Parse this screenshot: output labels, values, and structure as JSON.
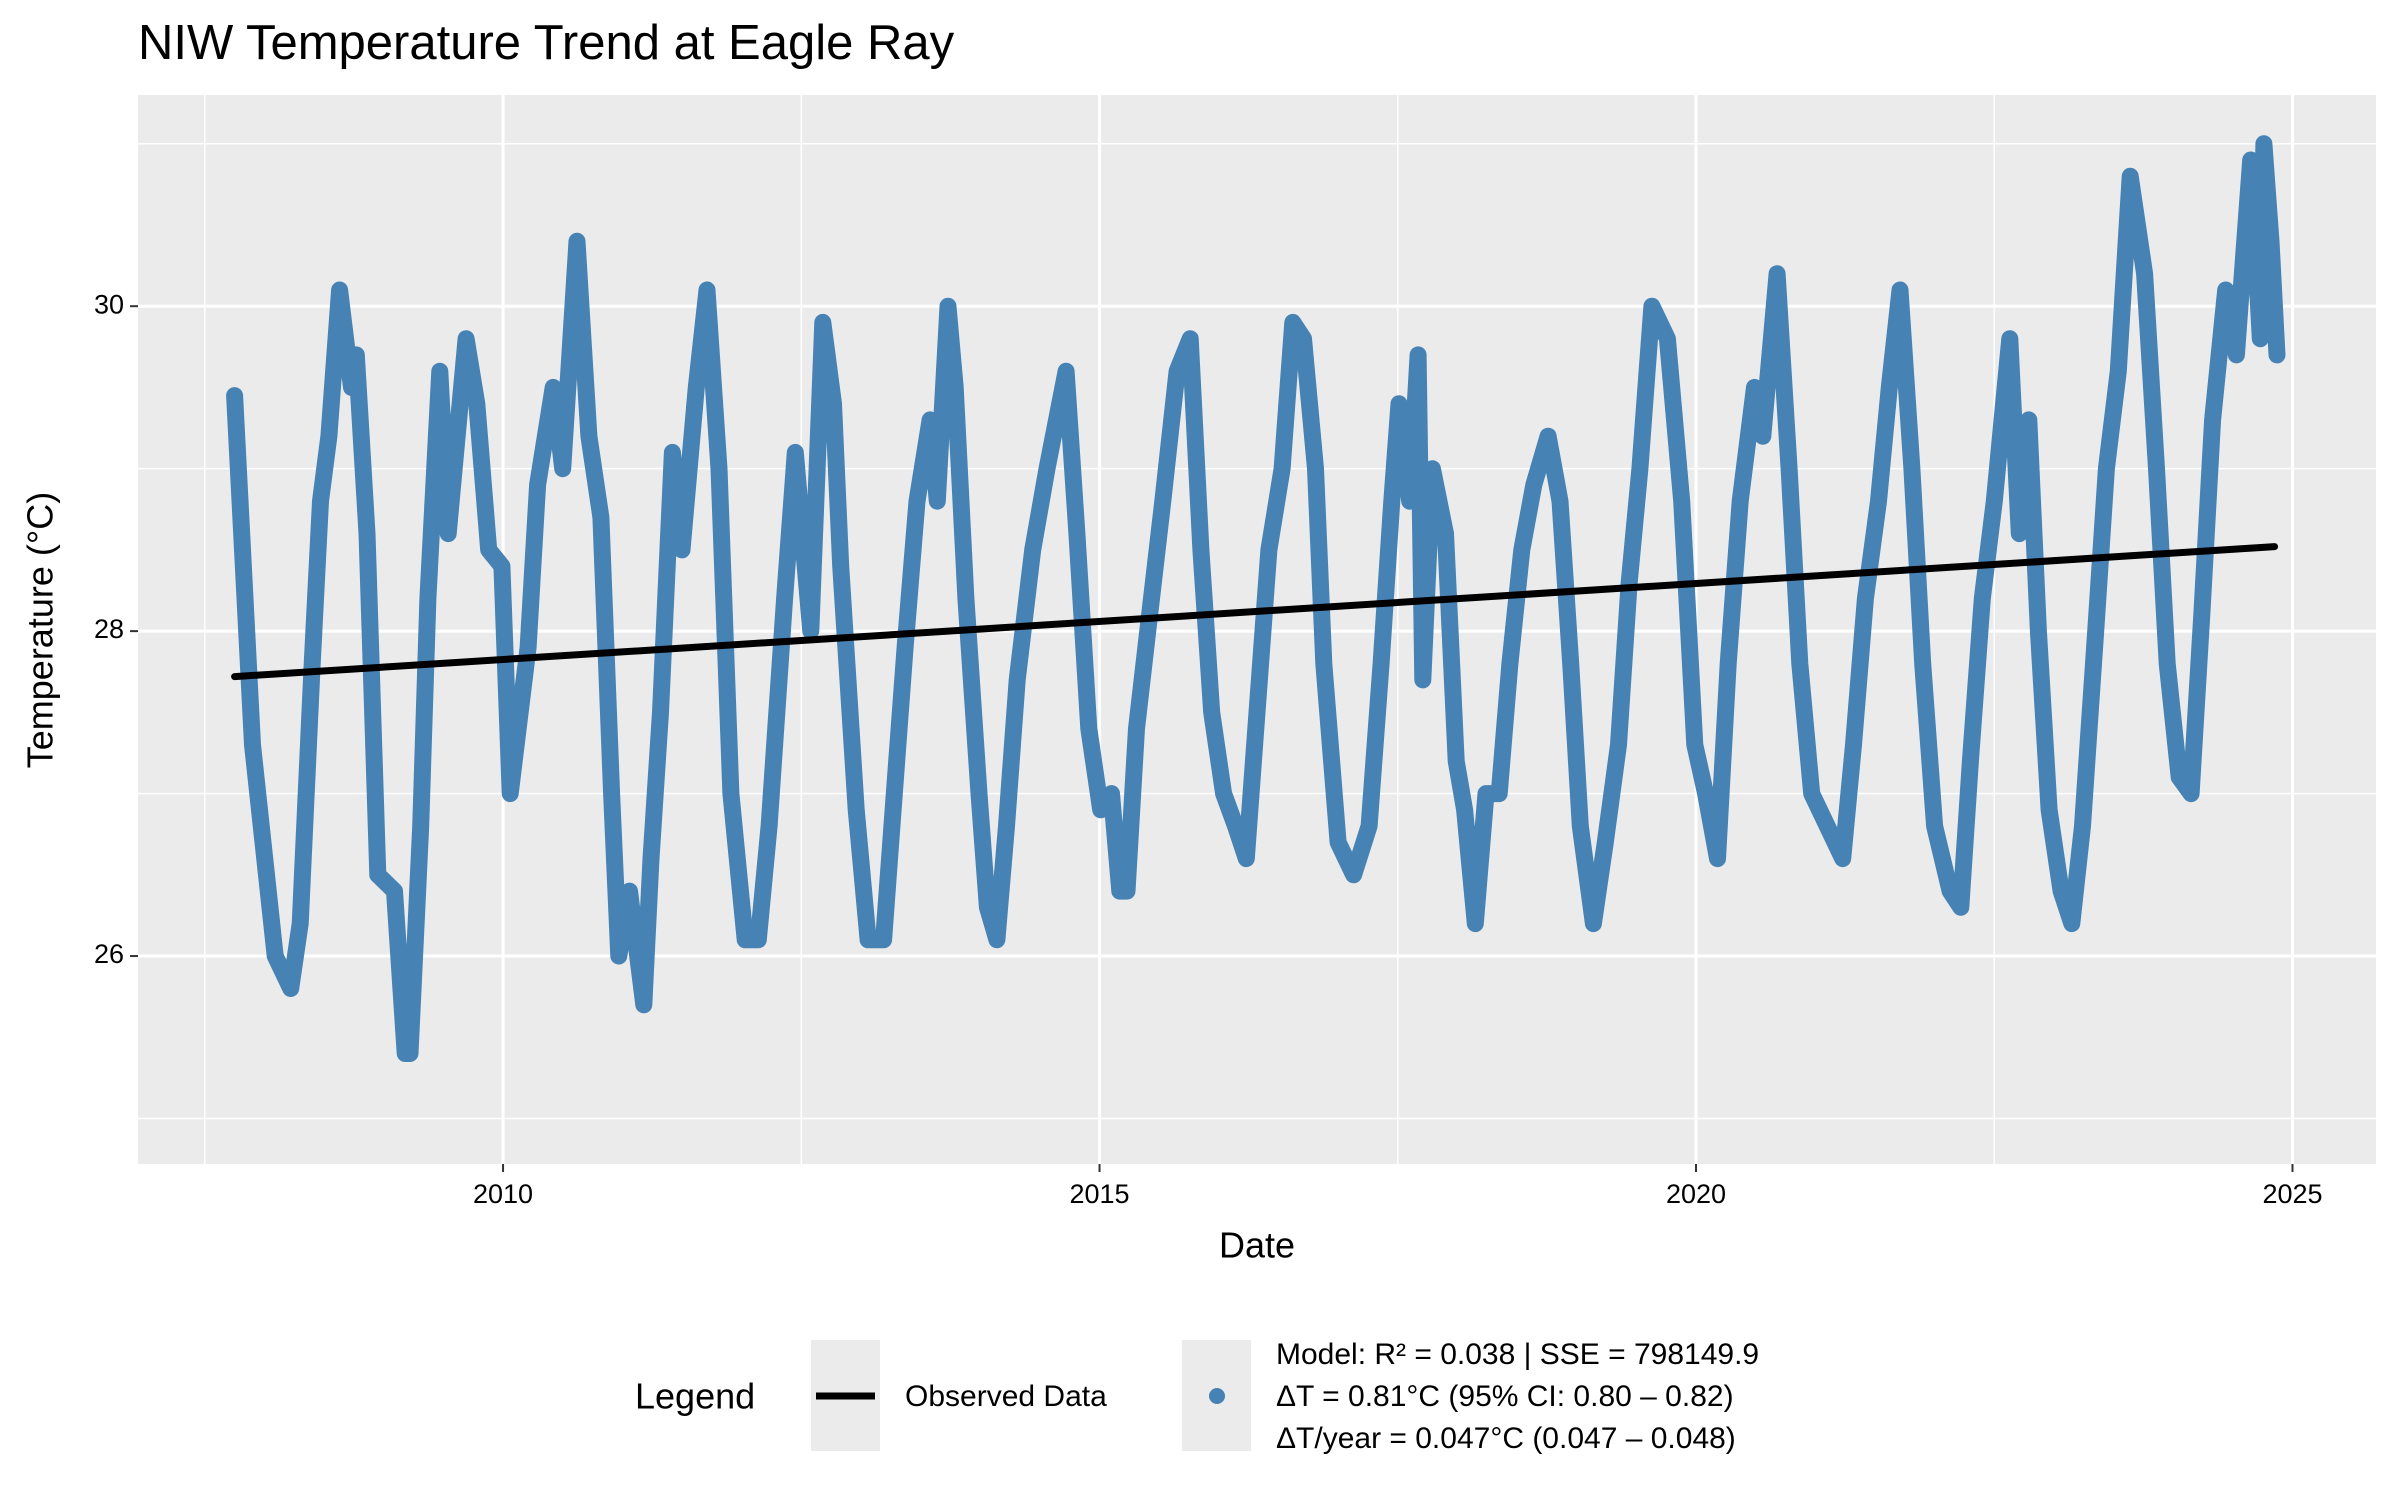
{
  "chart_data": {
    "type": "line",
    "title": "NIW Temperature Trend at Eagle Ray",
    "x_label": "Date",
    "y_label": "Temperature (°C)",
    "legend_title": "Legend",
    "legend_position": "bottom",
    "grid": true,
    "xlim": [
      2006.94,
      2025.7
    ],
    "ylim": [
      24.72,
      31.3
    ],
    "xticks": [
      2010,
      2015,
      2020,
      2025
    ],
    "yticks": [
      26,
      28,
      30
    ],
    "x_minor_ticks": [
      2007.5,
      2012.5,
      2017.5,
      2022.5
    ],
    "y_minor_ticks": [
      25,
      27,
      29,
      31
    ],
    "series": [
      {
        "name": "Observed Data",
        "key": "line",
        "color": "#000000",
        "x": [
          2007.75,
          2024.85
        ],
        "values": [
          27.72,
          28.52
        ]
      },
      {
        "name": [
          "Model: R² = 0.038 | SSE = 798149.9",
          "ΔT = 0.81°C (95% CI: 0.80 – 0.82)",
          "ΔT/year = 0.047°C (0.047 – 0.048)"
        ],
        "key": "point",
        "color": "#4682b4",
        "x": [
          2007.75,
          2007.9,
          2008.09,
          2008.22,
          2008.3,
          2008.4,
          2008.47,
          2008.54,
          2008.63,
          2008.73,
          2008.77,
          2008.86,
          2008.95,
          2009.09,
          2009.18,
          2009.22,
          2009.31,
          2009.37,
          2009.47,
          2009.54,
          2009.69,
          2009.78,
          2009.88,
          2009.99,
          2010.06,
          2010.21,
          2010.29,
          2010.42,
          2010.5,
          2010.62,
          2010.72,
          2010.82,
          2010.91,
          2010.97,
          2011.06,
          2011.18,
          2011.24,
          2011.32,
          2011.42,
          2011.5,
          2011.62,
          2011.71,
          2011.81,
          2011.91,
          2012.03,
          2012.14,
          2012.23,
          2012.36,
          2012.45,
          2012.58,
          2012.68,
          2012.77,
          2012.83,
          2012.96,
          2013.06,
          2013.19,
          2013.28,
          2013.37,
          2013.47,
          2013.58,
          2013.64,
          2013.73,
          2013.79,
          2013.88,
          2013.99,
          2014.06,
          2014.14,
          2014.22,
          2014.31,
          2014.44,
          2014.56,
          2014.72,
          2014.81,
          2014.91,
          2015.01,
          2015.1,
          2015.17,
          2015.23,
          2015.31,
          2015.42,
          2015.53,
          2015.65,
          2015.76,
          2015.85,
          2015.94,
          2016.04,
          2016.14,
          2016.23,
          2016.32,
          2016.42,
          2016.53,
          2016.62,
          2016.71,
          2016.81,
          2016.88,
          2017.0,
          2017.13,
          2017.26,
          2017.36,
          2017.45,
          2017.51,
          2017.6,
          2017.67,
          2017.71,
          2017.79,
          2017.9,
          2017.99,
          2018.06,
          2018.15,
          2018.24,
          2018.35,
          2018.44,
          2018.54,
          2018.64,
          2018.76,
          2018.86,
          2018.95,
          2019.03,
          2019.14,
          2019.24,
          2019.35,
          2019.44,
          2019.53,
          2019.63,
          2019.76,
          2019.88,
          2019.99,
          2020.08,
          2020.18,
          2020.27,
          2020.37,
          2020.49,
          2020.56,
          2020.68,
          2020.78,
          2020.87,
          2020.97,
          2021.23,
          2021.32,
          2021.42,
          2021.53,
          2021.62,
          2021.71,
          2021.81,
          2021.9,
          2022.0,
          2022.13,
          2022.22,
          2022.3,
          2022.4,
          2022.5,
          2022.63,
          2022.71,
          2022.79,
          2022.87,
          2022.96,
          2023.06,
          2023.15,
          2023.24,
          2023.35,
          2023.44,
          2023.54,
          2023.64,
          2023.76,
          2023.86,
          2023.95,
          2024.05,
          2024.15,
          2024.24,
          2024.33,
          2024.44,
          2024.53,
          2024.65,
          2024.73,
          2024.76,
          2024.82,
          2024.87
        ],
        "values": [
          29.45,
          27.3,
          26.0,
          25.8,
          26.2,
          27.8,
          28.8,
          29.2,
          30.1,
          29.5,
          29.7,
          28.6,
          26.5,
          26.4,
          25.4,
          25.4,
          26.8,
          28.2,
          29.6,
          28.6,
          29.8,
          29.4,
          28.5,
          28.4,
          27.0,
          27.9,
          28.9,
          29.5,
          29.0,
          30.4,
          29.2,
          28.7,
          27.0,
          26.0,
          26.4,
          25.7,
          26.6,
          27.5,
          29.1,
          28.5,
          29.5,
          30.1,
          29.0,
          27.0,
          26.1,
          26.1,
          26.8,
          28.2,
          29.1,
          28.0,
          29.9,
          29.4,
          28.4,
          26.9,
          26.1,
          26.1,
          27.0,
          27.9,
          28.8,
          29.3,
          28.8,
          30.0,
          29.5,
          28.2,
          27.0,
          26.3,
          26.1,
          26.8,
          27.7,
          28.5,
          29.0,
          29.6,
          28.6,
          27.4,
          26.9,
          27.0,
          26.4,
          26.4,
          27.4,
          28.1,
          28.8,
          29.6,
          29.8,
          28.5,
          27.5,
          27.0,
          26.8,
          26.6,
          27.5,
          28.5,
          29.0,
          29.9,
          29.8,
          29.0,
          27.8,
          26.7,
          26.5,
          26.8,
          27.8,
          28.8,
          29.4,
          28.8,
          29.7,
          27.7,
          29.0,
          28.6,
          27.2,
          26.9,
          26.2,
          27.0,
          27.0,
          27.8,
          28.5,
          28.9,
          29.2,
          28.8,
          27.8,
          26.8,
          26.2,
          26.7,
          27.3,
          28.3,
          29.0,
          30.0,
          29.8,
          28.8,
          27.3,
          27.0,
          26.6,
          27.8,
          28.8,
          29.5,
          29.2,
          30.2,
          29.0,
          27.8,
          27.0,
          26.6,
          27.3,
          28.2,
          28.8,
          29.5,
          30.1,
          29.0,
          27.8,
          26.8,
          26.4,
          26.3,
          27.2,
          28.2,
          28.8,
          29.8,
          28.6,
          29.3,
          28.0,
          26.9,
          26.4,
          26.2,
          26.8,
          28.0,
          29.0,
          29.6,
          30.8,
          30.2,
          29.0,
          27.8,
          27.1,
          27.0,
          28.1,
          29.3,
          30.1,
          29.7,
          30.9,
          29.8,
          31.0,
          30.4,
          29.7
        ]
      }
    ]
  }
}
